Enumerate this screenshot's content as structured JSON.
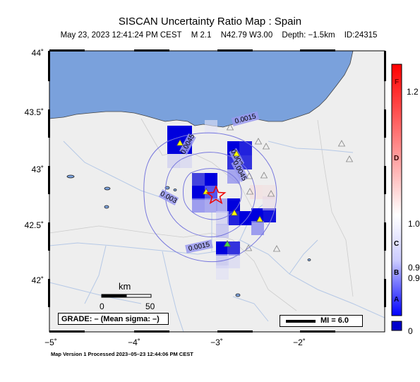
{
  "header": {
    "title": "SISCAN Uncertainty Ratio Map : Spain",
    "date": "May 23, 2023 12:41:24 PM CEST",
    "magnitude": "M 2.1",
    "location": "N42.79 W3.00",
    "depth": "Depth: −1.5km",
    "event_id": "ID:24315"
  },
  "axes": {
    "y_labels": [
      "44˚",
      "43.5˚",
      "43˚",
      "42.5˚",
      "42˚"
    ],
    "x_labels": [
      "−5˚",
      "−4˚",
      "−3˚",
      "−2˚"
    ]
  },
  "map_features": {
    "sea_color": "#7aa1dc",
    "land_color": "#eeeeee",
    "river_color": "#b5c8e6",
    "contour_color": "#7777dd",
    "contour_labels": [
      "0.0015",
      "0.0045",
      "0.003",
      "0.0045",
      "0.003",
      "0.0015"
    ],
    "epicenter": "red-star",
    "station_markers": "triangles"
  },
  "legend": {
    "grade_text": "GRADE: – (Mean sigma: –)",
    "mi_text": "MI = 6.0",
    "scale_unit": "km",
    "scale_ticks": [
      "0",
      "50"
    ]
  },
  "colorbar": {
    "letters": [
      "F",
      "D",
      "C",
      "B",
      "A"
    ],
    "tick_labels": [
      "1.2",
      "1.0",
      "0.9",
      "0.9",
      "0"
    ],
    "colors": [
      "#ff0000",
      "#ffffff",
      "#0000ff"
    ]
  },
  "footer": {
    "text": "Map Version 1 Processed 2023–05–23 12:44:06 PM CEST"
  }
}
